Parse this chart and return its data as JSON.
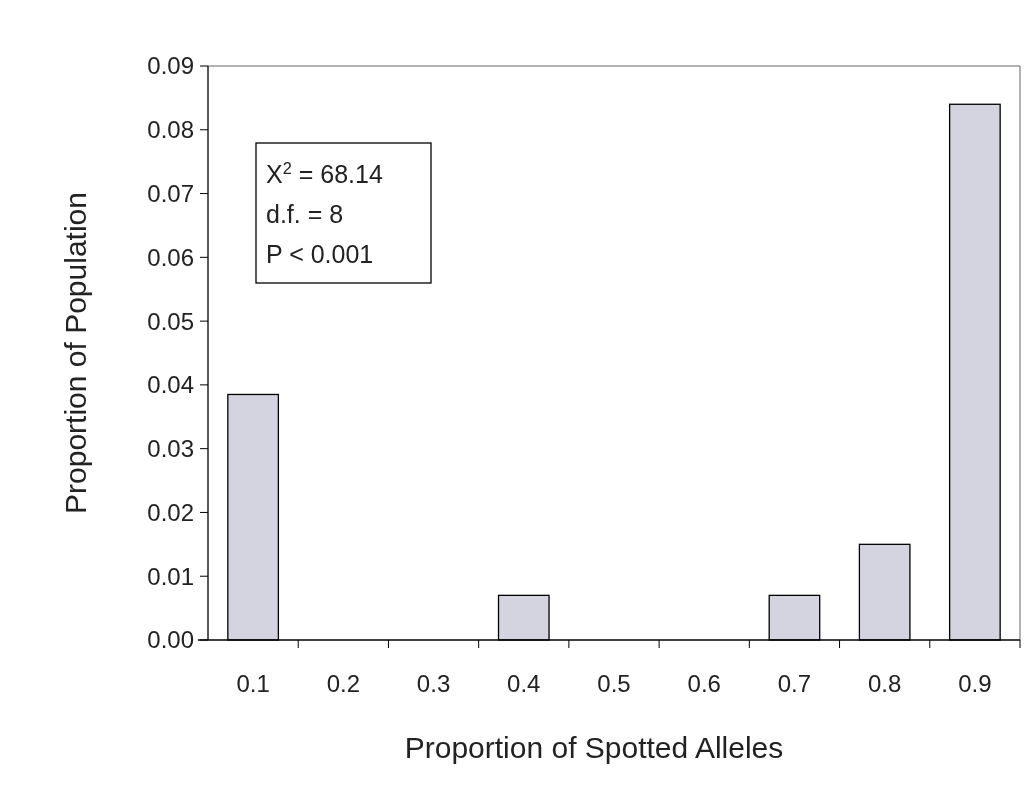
{
  "chart_data": {
    "type": "bar",
    "xlabel": "Proportion of Spotted Alleles",
    "ylabel": "Proportion of Population",
    "categories": [
      "0.1",
      "0.2",
      "0.3",
      "0.4",
      "0.5",
      "0.6",
      "0.7",
      "0.8",
      "0.9"
    ],
    "values": [
      0.0385,
      0,
      0,
      0.007,
      0,
      0,
      0.007,
      0.015,
      0.084
    ],
    "color": "#d4d3e0",
    "ylim": [
      0,
      0.09
    ],
    "yticks": [
      {
        "value": 0,
        "label": "0.00"
      },
      {
        "value": 0.01,
        "label": "0.01"
      },
      {
        "value": 0.02,
        "label": "0.02"
      },
      {
        "value": 0.03,
        "label": "0.03"
      },
      {
        "value": 0.04,
        "label": "0.04"
      },
      {
        "value": 0.05,
        "label": "0.05"
      },
      {
        "value": 0.06,
        "label": "0.06"
      },
      {
        "value": 0.07,
        "label": "0.07"
      },
      {
        "value": 0.08,
        "label": "0.08"
      },
      {
        "value": 0.09,
        "label": "0.09"
      }
    ],
    "annotations": [
      "X$^{2}$ = 68.14",
      "d.f. = 8",
      "P < 0.001"
    ]
  }
}
